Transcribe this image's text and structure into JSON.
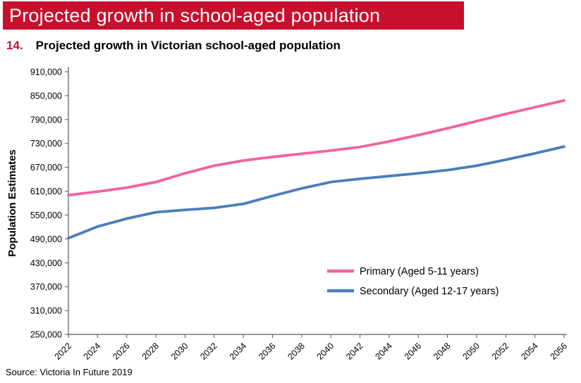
{
  "header": {
    "title": "Projected growth in school-aged population",
    "bg_color": "#C8102E",
    "text_color": "#FFFFFF"
  },
  "figure": {
    "number": "14.",
    "title": "Projected growth in Victorian school-aged population",
    "number_color": "#C8102E"
  },
  "source": "Source: Victoria In Future 2019",
  "chart_data": {
    "type": "line",
    "title": "",
    "xlabel": "",
    "ylabel": "Population Estimates",
    "ylim": [
      250000,
      910000
    ],
    "ytick_step": 60000,
    "yticks": [
      250000,
      310000,
      370000,
      430000,
      490000,
      550000,
      610000,
      670000,
      730000,
      790000,
      850000,
      910000
    ],
    "categories": [
      "2022",
      "2024",
      "2026",
      "2028",
      "2030",
      "2032",
      "2034",
      "2036",
      "2038",
      "2040",
      "2042",
      "2044",
      "2046",
      "2048",
      "2050",
      "2052",
      "2054",
      "2056"
    ],
    "grid": false,
    "legend_position": "inside-lower-right",
    "series": [
      {
        "name": "Primary (Aged 5-11 years)",
        "color": "#F4629F",
        "values": [
          600000,
          609000,
          619000,
          633000,
          655000,
          674000,
          687000,
          696000,
          704000,
          712000,
          721000,
          735000,
          751000,
          768000,
          786000,
          804000,
          821000,
          838000
        ]
      },
      {
        "name": "Secondary (Aged 12-17 years)",
        "color": "#4A7EBB",
        "values": [
          492000,
          521000,
          541000,
          557000,
          563000,
          568000,
          578000,
          598000,
          617000,
          633000,
          641000,
          648000,
          655000,
          663000,
          674000,
          689000,
          705000,
          722000
        ]
      }
    ]
  }
}
